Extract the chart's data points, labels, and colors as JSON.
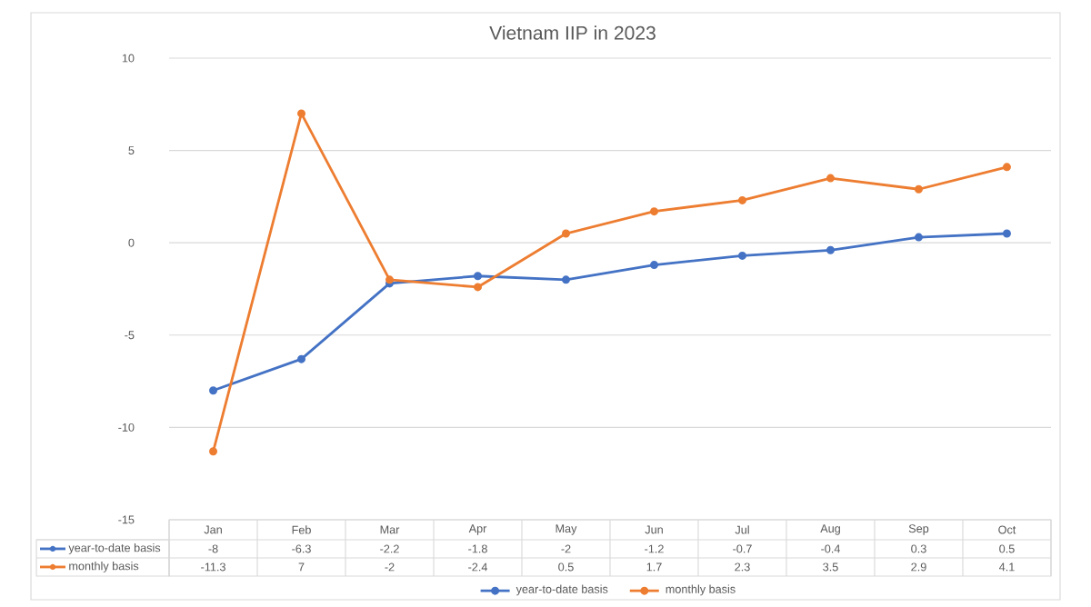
{
  "chart_data": {
    "type": "line",
    "title": "Vietnam IIP in 2023",
    "categories": [
      "Jan",
      "Feb",
      "Mar",
      "Apr",
      "May",
      "Jun",
      "Jul",
      "Aug",
      "Sep",
      "Oct"
    ],
    "series": [
      {
        "name": "year-to-date basis",
        "color": "#4472c4",
        "values": [
          -8,
          -6.3,
          -2.2,
          -1.8,
          -2,
          -1.2,
          -0.7,
          -0.4,
          0.3,
          0.5
        ]
      },
      {
        "name": "monthly basis",
        "color": "#ed7d31",
        "values": [
          -11.3,
          7,
          -2,
          -2.4,
          0.5,
          1.7,
          2.3,
          3.5,
          2.9,
          4.1
        ]
      }
    ],
    "ylim": [
      -15,
      10
    ],
    "yticks": [
      -15,
      -10,
      -5,
      0,
      5,
      10
    ],
    "grid": "y",
    "legend": "bottom",
    "marker": "circle",
    "line_style": "solid",
    "data_labels": true
  }
}
